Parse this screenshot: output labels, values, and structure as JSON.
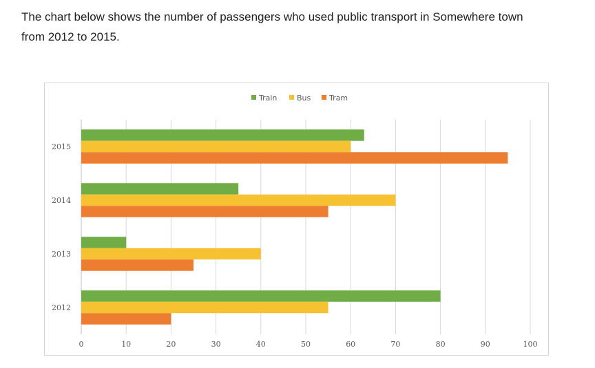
{
  "description": {
    "line1": "The chart below shows the number of passengers who used public transport in Somewhere town",
    "line2": "from 2012 to 2015."
  },
  "chart_data": {
    "type": "bar",
    "orientation": "horizontal",
    "title": "",
    "xlabel": "",
    "ylabel": "",
    "categories": [
      "2012",
      "2013",
      "2014",
      "2015"
    ],
    "series": [
      {
        "name": "Train",
        "color": "#70ad47",
        "values": [
          80,
          10,
          35,
          63
        ]
      },
      {
        "name": "Bus",
        "color": "#f6c232",
        "values": [
          55,
          40,
          70,
          60
        ]
      },
      {
        "name": "Tram",
        "color": "#ed7d31",
        "values": [
          20,
          25,
          55,
          95
        ]
      }
    ],
    "xlim": [
      0,
      100
    ],
    "xticks": [
      0,
      10,
      20,
      30,
      40,
      50,
      60,
      70,
      80,
      90,
      100
    ],
    "grid": true,
    "legend_position": "top-center"
  }
}
